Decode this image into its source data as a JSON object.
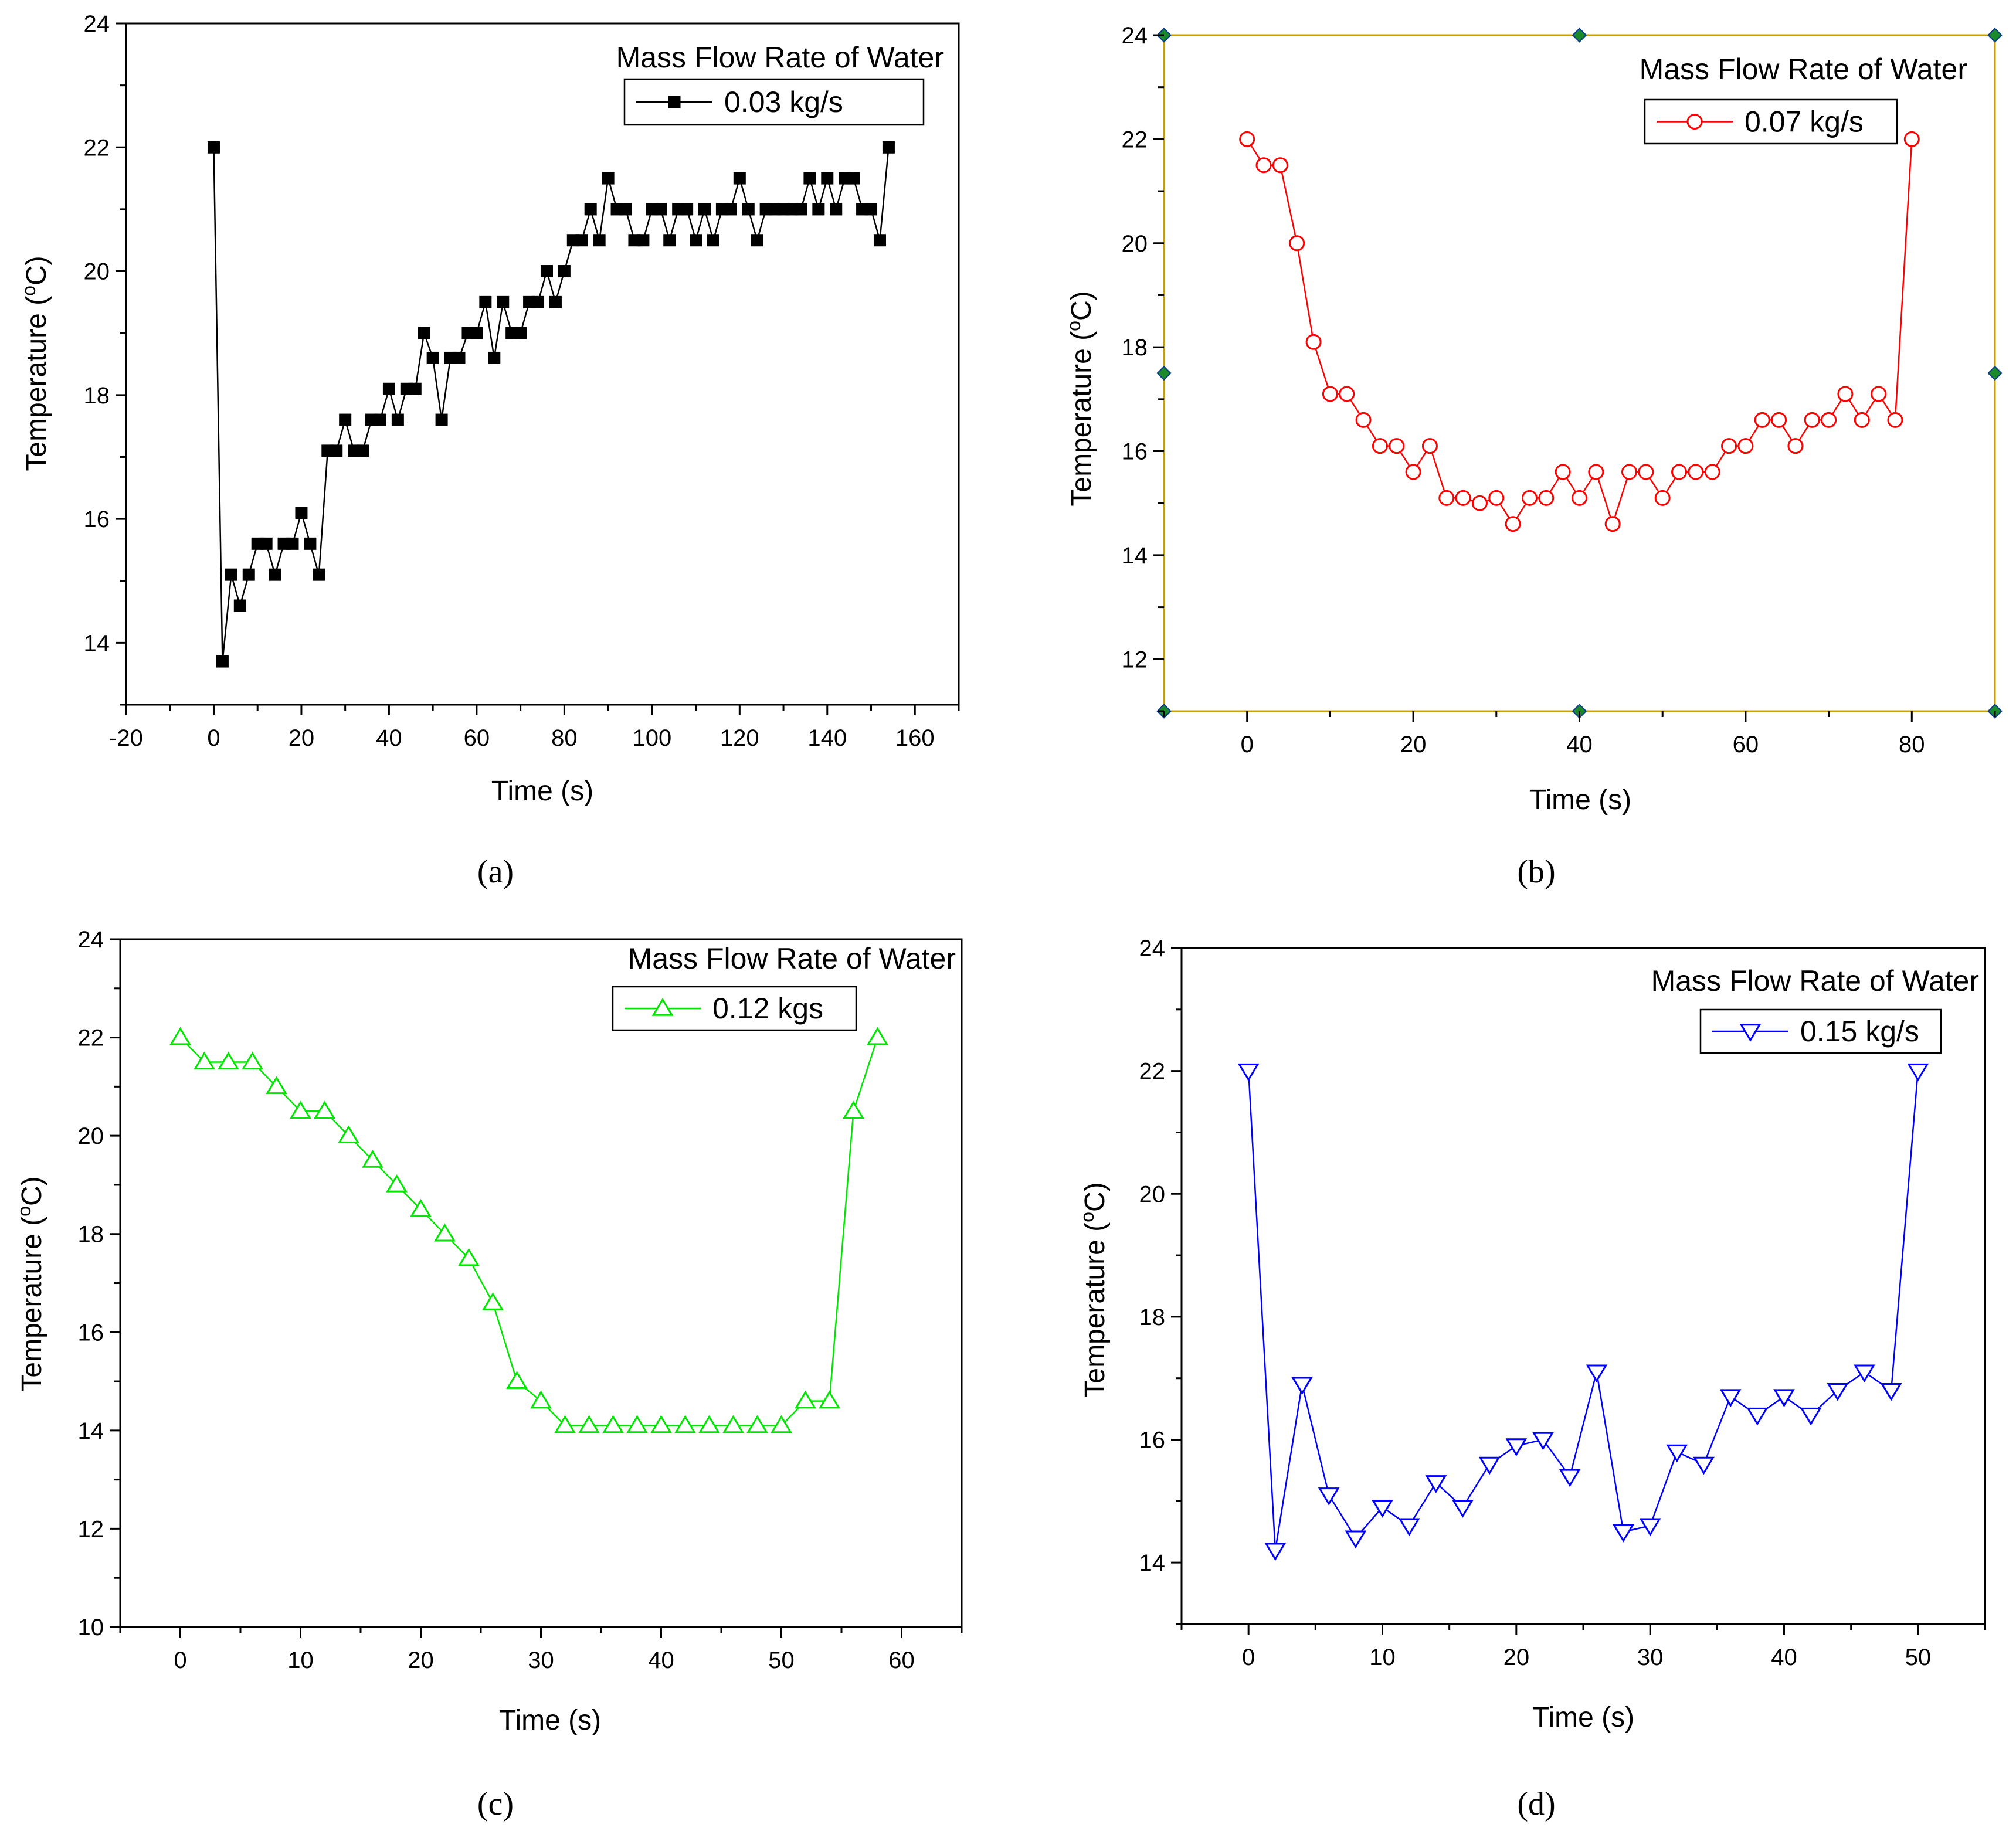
{
  "chart_data": [
    {
      "type": "line",
      "panel_label": "(a)",
      "title": "",
      "xlabel": "Time (s)",
      "ylabel": "Temperature (oC)",
      "ylabel_parts": {
        "pre": "Temperature (",
        "sup": "o",
        "post": "C)"
      },
      "xlim": [
        -20,
        170
      ],
      "ylim": [
        13,
        24
      ],
      "xticks": [
        -20,
        0,
        20,
        40,
        60,
        80,
        100,
        120,
        140,
        160
      ],
      "yticks": [
        14,
        16,
        18,
        20,
        22,
        24
      ],
      "legend": {
        "title": "Mass Flow Rate of Water",
        "entries": [
          "0.03 kg/s"
        ],
        "position": "top-right"
      },
      "series": [
        {
          "name": "0.03 kg/s",
          "color": "#000000",
          "marker": "square-filled",
          "x": [
            0,
            2,
            4,
            6,
            8,
            10,
            12,
            14,
            16,
            18,
            20,
            22,
            24,
            26,
            28,
            30,
            32,
            34,
            36,
            38,
            40,
            42,
            44,
            46,
            48,
            50,
            52,
            54,
            56,
            58,
            60,
            62,
            64,
            66,
            68,
            70,
            72,
            74,
            76,
            78,
            80,
            82,
            84,
            86,
            88,
            90,
            92,
            94,
            96,
            98,
            100,
            102,
            104,
            106,
            108,
            110,
            112,
            114,
            116,
            118,
            120,
            122,
            124,
            126,
            128,
            130,
            132,
            134,
            136,
            138,
            140,
            142,
            144,
            146,
            148,
            150,
            152,
            154
          ],
          "y": [
            22,
            13.7,
            15.1,
            14.6,
            15.1,
            15.6,
            15.6,
            15.1,
            15.6,
            15.6,
            16.1,
            15.6,
            15.1,
            17.1,
            17.1,
            17.6,
            17.1,
            17.1,
            17.6,
            17.6,
            18.1,
            17.6,
            18.1,
            18.1,
            19.0,
            18.6,
            17.6,
            18.6,
            18.6,
            19.0,
            19.0,
            19.5,
            18.6,
            19.5,
            19.0,
            19.0,
            19.5,
            19.5,
            20.0,
            19.5,
            20.0,
            20.5,
            20.5,
            21.0,
            20.5,
            21.5,
            21.0,
            21.0,
            20.5,
            20.5,
            21.0,
            21.0,
            20.5,
            21.0,
            21.0,
            20.5,
            21.0,
            20.5,
            21.0,
            21.0,
            21.5,
            21.0,
            20.5,
            21.0,
            21.0,
            21.0,
            21.0,
            21.0,
            21.5,
            21.0,
            21.5,
            21.0,
            21.5,
            21.5,
            21.0,
            21.0,
            20.5,
            22.0
          ]
        }
      ]
    },
    {
      "type": "line",
      "panel_label": "(b)",
      "title": "",
      "xlabel": "Time (s)",
      "ylabel": "Temperature (oC)",
      "ylabel_parts": {
        "pre": "Temperature (",
        "sup": "o",
        "post": "C)"
      },
      "xlim": [
        -10,
        90
      ],
      "ylim": [
        11,
        24
      ],
      "xticks": [
        0,
        20,
        40,
        60,
        80
      ],
      "yticks": [
        12,
        14,
        16,
        18,
        20,
        22,
        24
      ],
      "legend": {
        "title": "Mass Flow Rate of Water",
        "entries": [
          "0.07 kg/s"
        ],
        "position": "top-right"
      },
      "series": [
        {
          "name": "0.07 kg/s",
          "color": "#ff0000",
          "marker": "circle-open",
          "x": [
            0,
            2,
            4,
            6,
            8,
            10,
            12,
            14,
            16,
            18,
            20,
            22,
            24,
            26,
            28,
            30,
            32,
            34,
            36,
            38,
            40,
            42,
            44,
            46,
            48,
            50,
            52,
            54,
            56,
            58,
            60,
            62,
            64,
            66,
            68,
            70,
            72,
            74,
            76,
            78,
            80
          ],
          "y": [
            22,
            21.5,
            21.5,
            20.0,
            18.1,
            17.1,
            17.1,
            16.6,
            16.1,
            16.1,
            15.6,
            16.1,
            15.1,
            15.1,
            15.0,
            15.1,
            14.6,
            15.1,
            15.1,
            15.6,
            15.1,
            15.6,
            14.6,
            15.6,
            15.6,
            15.1,
            15.6,
            15.6,
            15.6,
            16.1,
            16.1,
            16.6,
            16.6,
            16.1,
            16.6,
            16.6,
            17.1,
            16.6,
            17.1,
            16.6,
            22.0
          ]
        }
      ]
    },
    {
      "type": "line",
      "panel_label": "(c)",
      "title": "",
      "xlabel": "Time (s)",
      "ylabel": "Temperature (oC)",
      "ylabel_parts": {
        "pre": "Temperature (",
        "sup": "o",
        "post": "C)"
      },
      "xlim": [
        -5,
        65
      ],
      "ylim": [
        10,
        24
      ],
      "xticks": [
        0,
        10,
        20,
        30,
        40,
        50,
        60
      ],
      "yticks": [
        10,
        12,
        14,
        16,
        18,
        20,
        22,
        24
      ],
      "legend": {
        "title": "Mass Flow Rate of Water",
        "entries": [
          "0.12 kgs"
        ],
        "position": "top-right"
      },
      "series": [
        {
          "name": "0.12 kgs",
          "color": "#00e600",
          "marker": "triangle-up-open",
          "x": [
            0,
            2,
            4,
            6,
            8,
            10,
            12,
            14,
            16,
            18,
            20,
            22,
            24,
            26,
            28,
            30,
            32,
            34,
            36,
            38,
            40,
            42,
            44,
            46,
            48,
            50,
            52,
            54,
            56,
            58
          ],
          "y": [
            22,
            21.5,
            21.5,
            21.5,
            21.0,
            20.5,
            20.5,
            20.0,
            19.5,
            19.0,
            18.5,
            18.0,
            17.5,
            16.6,
            15.0,
            14.6,
            14.1,
            14.1,
            14.1,
            14.1,
            14.1,
            14.1,
            14.1,
            14.1,
            14.1,
            14.1,
            14.6,
            14.6,
            20.5,
            22.0
          ]
        }
      ]
    },
    {
      "type": "line",
      "panel_label": "(d)",
      "title": "",
      "xlabel": "Time (s)",
      "ylabel": "Temperature (oC)",
      "ylabel_parts": {
        "pre": "Temperature (",
        "sup": "o",
        "post": "C)"
      },
      "xlim": [
        -5,
        55
      ],
      "ylim": [
        13,
        24
      ],
      "xticks": [
        0,
        10,
        20,
        30,
        40,
        50
      ],
      "yticks": [
        14,
        16,
        18,
        20,
        22,
        24
      ],
      "legend": {
        "title": "Mass Flow Rate of Water",
        "entries": [
          "0.15 kg/s"
        ],
        "position": "top-right"
      },
      "series": [
        {
          "name": "0.15 kg/s",
          "color": "#0000ff",
          "marker": "triangle-down-open",
          "x": [
            0,
            2,
            4,
            6,
            8,
            10,
            12,
            14,
            16,
            18,
            20,
            22,
            24,
            26,
            28,
            30,
            32,
            34,
            36,
            38,
            40,
            42,
            44,
            46,
            48,
            50
          ],
          "y": [
            22,
            14.2,
            16.9,
            15.1,
            14.4,
            14.9,
            14.6,
            15.3,
            14.9,
            15.6,
            15.9,
            16.0,
            15.4,
            17.1,
            14.5,
            14.6,
            15.8,
            15.6,
            16.7,
            16.4,
            16.7,
            16.4,
            16.8,
            17.1,
            16.8,
            22.0
          ]
        }
      ]
    }
  ]
}
